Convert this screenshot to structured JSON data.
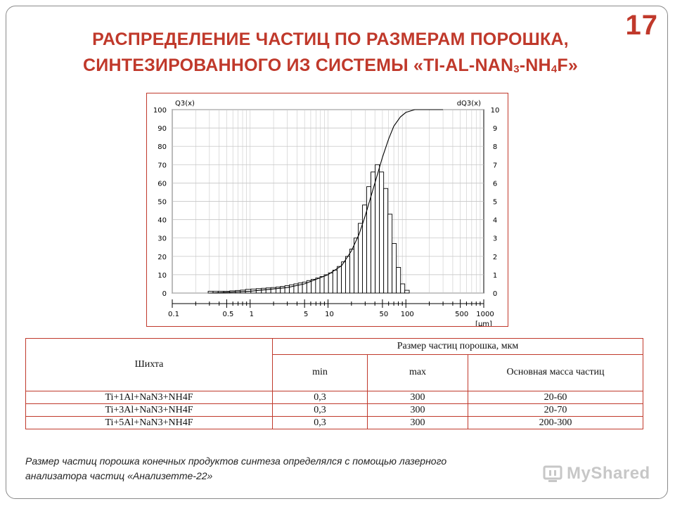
{
  "page_number": "17",
  "title": {
    "line1": "РАСПРЕДЕЛЕНИЕ ЧАСТИЦ ПО РАЗМЕРАМ ПОРОШКА,",
    "line2_a": "СИНТЕЗИРОВАННОГО ИЗ СИСТЕМЫ «TI-AL-NAN",
    "line2_sub1": "3",
    "line2_b": "-NH",
    "line2_sub2": "4",
    "line2_c": "F»"
  },
  "chart_data": {
    "type": "bar",
    "xlabel": "[µm]",
    "ylabel": "Q3(x)",
    "ylabel_right": "dQ3(x)",
    "x_scale": "log",
    "x_ticks": [
      "0.1",
      "0.5",
      "1",
      "5",
      "10",
      "50",
      "100",
      "500",
      "1000"
    ],
    "y_ticks": [
      "0",
      "10",
      "20",
      "30",
      "40",
      "50",
      "60",
      "70",
      "80",
      "90",
      "100"
    ],
    "y_ticks_right": [
      "0",
      "1",
      "2",
      "3",
      "4",
      "5",
      "6",
      "7",
      "8",
      "9",
      "10"
    ],
    "xlim": [
      0.1,
      1000
    ],
    "ylim": [
      0,
      100
    ],
    "ylim_right": [
      0,
      10
    ],
    "grid": true,
    "bars": [
      {
        "x": 0.31,
        "y": 0.1
      },
      {
        "x": 0.36,
        "y": 0.1
      },
      {
        "x": 0.42,
        "y": 0.1
      },
      {
        "x": 0.5,
        "y": 0.1
      },
      {
        "x": 0.6,
        "y": 0.12
      },
      {
        "x": 0.7,
        "y": 0.14
      },
      {
        "x": 0.8,
        "y": 0.16
      },
      {
        "x": 0.95,
        "y": 0.2
      },
      {
        "x": 1.1,
        "y": 0.22
      },
      {
        "x": 1.3,
        "y": 0.24
      },
      {
        "x": 1.5,
        "y": 0.26
      },
      {
        "x": 1.7,
        "y": 0.28
      },
      {
        "x": 2.0,
        "y": 0.3
      },
      {
        "x": 2.3,
        "y": 0.33
      },
      {
        "x": 2.6,
        "y": 0.36
      },
      {
        "x": 3.0,
        "y": 0.4
      },
      {
        "x": 3.4,
        "y": 0.45
      },
      {
        "x": 3.9,
        "y": 0.5
      },
      {
        "x": 4.4,
        "y": 0.55
      },
      {
        "x": 5.0,
        "y": 0.6
      },
      {
        "x": 5.7,
        "y": 0.68
      },
      {
        "x": 6.5,
        "y": 0.75
      },
      {
        "x": 7.4,
        "y": 0.82
      },
      {
        "x": 8.4,
        "y": 0.9
      },
      {
        "x": 9.5,
        "y": 1.0
      },
      {
        "x": 10.8,
        "y": 1.1
      },
      {
        "x": 12.3,
        "y": 1.25
      },
      {
        "x": 14.0,
        "y": 1.45
      },
      {
        "x": 15.8,
        "y": 1.7
      },
      {
        "x": 17.9,
        "y": 2.0
      },
      {
        "x": 20.3,
        "y": 2.4
      },
      {
        "x": 23.0,
        "y": 3.0
      },
      {
        "x": 26.0,
        "y": 3.8
      },
      {
        "x": 29.5,
        "y": 4.8
      },
      {
        "x": 33.4,
        "y": 5.8
      },
      {
        "x": 37.9,
        "y": 6.6
      },
      {
        "x": 43.0,
        "y": 7.0
      },
      {
        "x": 48.7,
        "y": 6.6
      },
      {
        "x": 55.2,
        "y": 5.7
      },
      {
        "x": 62.5,
        "y": 4.3
      },
      {
        "x": 70.8,
        "y": 2.7
      },
      {
        "x": 80.3,
        "y": 1.4
      },
      {
        "x": 91.0,
        "y": 0.5
      },
      {
        "x": 103,
        "y": 0.15
      }
    ],
    "cumulative": [
      {
        "x": 0.3,
        "y": 0
      },
      {
        "x": 1,
        "y": 1
      },
      {
        "x": 3,
        "y": 3
      },
      {
        "x": 5,
        "y": 5
      },
      {
        "x": 10,
        "y": 10
      },
      {
        "x": 15,
        "y": 15
      },
      {
        "x": 20,
        "y": 23
      },
      {
        "x": 25,
        "y": 32
      },
      {
        "x": 30,
        "y": 42
      },
      {
        "x": 40,
        "y": 60
      },
      {
        "x": 50,
        "y": 74
      },
      {
        "x": 60,
        "y": 84
      },
      {
        "x": 70,
        "y": 91
      },
      {
        "x": 85,
        "y": 96
      },
      {
        "x": 100,
        "y": 98.5
      },
      {
        "x": 130,
        "y": 100
      },
      {
        "x": 300,
        "y": 100
      }
    ]
  },
  "table": {
    "header_col1": "Шихта",
    "header_group": "Размер частиц порошка, мкм",
    "header_min": "min",
    "header_max": "max",
    "header_main": "Основная масса частиц",
    "rows": [
      {
        "charge": "Ti+1Al+NaN3+NH4F",
        "min": "0,3",
        "max": "300",
        "main": "20-60"
      },
      {
        "charge": "Ti+3Al+NaN3+NH4F",
        "min": "0,3",
        "max": "300",
        "main": "20-70"
      },
      {
        "charge": "Ti+5Al+NaN3+NH4F",
        "min": "0,3",
        "max": "300",
        "main": "200-300"
      }
    ]
  },
  "note": {
    "line1": "Размер частиц порошка конечных продуктов синтеза определялся с помощью лазерного",
    "line2": "анализатора частиц «Анализетте-22»"
  },
  "watermark": {
    "text": "MyShared",
    "icon": "myshared-logo-icon"
  }
}
